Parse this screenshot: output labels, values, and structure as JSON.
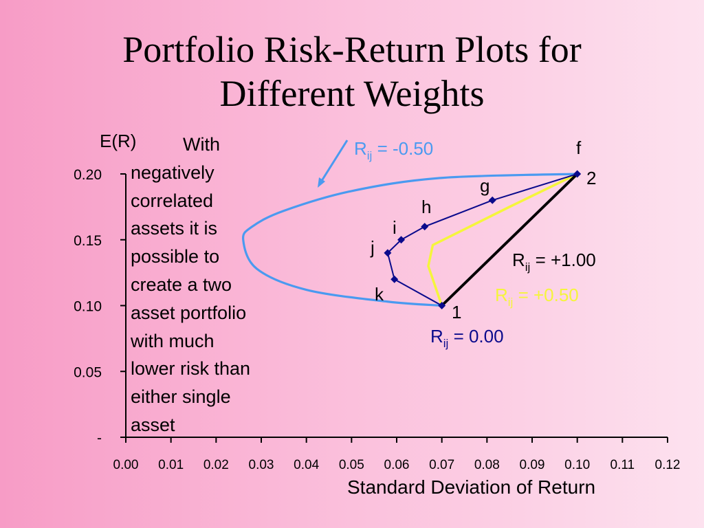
{
  "title": {
    "line1": "Portfolio Risk-Return Plots for",
    "line2": "Different Weights"
  },
  "note": {
    "first": "With",
    "lines": [
      "negatively",
      "correlated",
      "assets it is",
      "possible to",
      "create a two",
      "asset portfolio",
      "with much",
      "lower risk than",
      "either single",
      "asset"
    ]
  },
  "colors": {
    "neg050": "#4a9af0",
    "zero": "#0a0a8c",
    "pos050": "#f5f53c",
    "pos100": "#000000",
    "marker": "#0a0a8c"
  },
  "chart_data": {
    "type": "line",
    "xlabel": "Standard Deviation of Return",
    "ylabel": "E(R)",
    "xlim": [
      0,
      0.12
    ],
    "ylim": [
      0,
      0.2
    ],
    "x_ticks": [
      "0.00",
      "0.01",
      "0.02",
      "0.03",
      "0.04",
      "0.05",
      "0.06",
      "0.07",
      "0.08",
      "0.09",
      "0.10",
      "0.11",
      "0.12"
    ],
    "y_ticks": [
      {
        "value": 0,
        "label": "-"
      },
      {
        "value": 0.05,
        "label": "0.05"
      },
      {
        "value": 0.1,
        "label": "0.10"
      },
      {
        "value": 0.15,
        "label": "0.15"
      },
      {
        "value": 0.2,
        "label": "0.20"
      }
    ],
    "series": [
      {
        "label": {
          "main": "R",
          "sub": "ij",
          "rest": " = -0.50"
        },
        "x": [
          0.07,
          0.058,
          0.04,
          0.029,
          0.026,
          0.028,
          0.035,
          0.05,
          0.07,
          0.1
        ],
        "y": [
          0.1,
          0.103,
          0.112,
          0.128,
          0.15,
          0.16,
          0.172,
          0.187,
          0.197,
          0.2
        ]
      },
      {
        "label": {
          "main": "R",
          "sub": "ij",
          "rest": " = 0.00"
        },
        "x": [
          0.07,
          0.0595,
          0.058,
          0.061,
          0.0662,
          0.0812,
          0.1
        ],
        "y": [
          0.1,
          0.12,
          0.14,
          0.15,
          0.16,
          0.18,
          0.2
        ]
      },
      {
        "label": {
          "main": "R",
          "sub": "ij",
          "rest": " = +0.50"
        },
        "x": [
          0.07,
          0.067,
          0.068,
          0.085,
          0.1
        ],
        "y": [
          0.1,
          0.13,
          0.146,
          0.175,
          0.2
        ]
      },
      {
        "label": {
          "main": "R",
          "sub": "ij",
          "rest": " = +1.00"
        },
        "x": [
          0.07,
          0.1
        ],
        "y": [
          0.1,
          0.2
        ]
      }
    ],
    "points": [
      {
        "label": "f",
        "x": 0.1,
        "y": 0.2
      },
      {
        "label": "g",
        "x": 0.0812,
        "y": 0.18
      },
      {
        "label": "h",
        "x": 0.0662,
        "y": 0.16
      },
      {
        "label": "i",
        "x": 0.061,
        "y": 0.15
      },
      {
        "label": "j",
        "x": 0.058,
        "y": 0.14
      },
      {
        "label": "k",
        "x": 0.0595,
        "y": 0.12
      },
      {
        "label": "",
        "x": 0.07,
        "y": 0.1
      }
    ],
    "asset_labels": [
      "1",
      "2"
    ]
  }
}
